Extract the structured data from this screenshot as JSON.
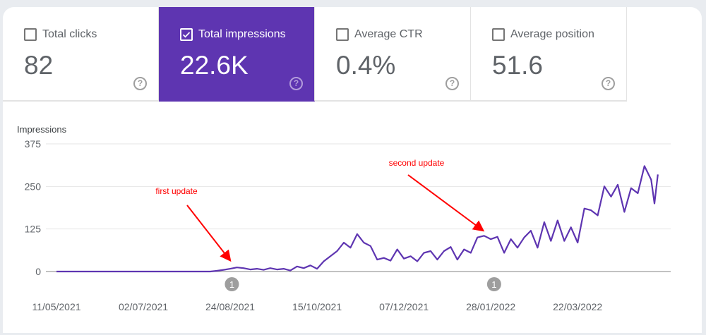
{
  "metrics": [
    {
      "label": "Total clicks",
      "value": "82",
      "checked": false
    },
    {
      "label": "Total impressions",
      "value": "22.6K",
      "checked": true
    },
    {
      "label": "Average CTR",
      "value": "0.4%",
      "checked": false
    },
    {
      "label": "Average position",
      "value": "51.6",
      "checked": false
    }
  ],
  "help_icon": "?",
  "colors": {
    "accent": "#5e35b1",
    "line": "#5e35b1",
    "annotation": "#ff0000"
  },
  "chart_data": {
    "type": "line",
    "ylabel": "Impressions",
    "ylim": [
      0,
      375
    ],
    "yticks": [
      "0",
      "125",
      "250",
      "375"
    ],
    "xticks": [
      "11/05/2021",
      "02/07/2021",
      "24/08/2021",
      "15/10/2021",
      "07/12/2021",
      "28/01/2022",
      "22/03/2022"
    ],
    "grid": true,
    "annotations": [
      {
        "text": "first update",
        "date": "2021-08-24"
      },
      {
        "text": "second update",
        "date": "2022-01-26"
      }
    ],
    "markers": [
      {
        "label": "1",
        "date": "2021-08-24"
      },
      {
        "label": "1",
        "date": "2022-01-28"
      }
    ],
    "series": [
      {
        "color": "#5e35b1",
        "points": [
          [
            "2021-05-11",
            0
          ],
          [
            "2021-05-15",
            0
          ],
          [
            "2021-05-19",
            0
          ],
          [
            "2021-05-23",
            0
          ],
          [
            "2021-05-27",
            0
          ],
          [
            "2021-05-31",
            0
          ],
          [
            "2021-06-04",
            0
          ],
          [
            "2021-06-08",
            0
          ],
          [
            "2021-06-12",
            0
          ],
          [
            "2021-06-16",
            0
          ],
          [
            "2021-06-20",
            0
          ],
          [
            "2021-06-24",
            0
          ],
          [
            "2021-06-28",
            0
          ],
          [
            "2021-07-02",
            0
          ],
          [
            "2021-07-06",
            0
          ],
          [
            "2021-07-10",
            0
          ],
          [
            "2021-07-14",
            0
          ],
          [
            "2021-07-18",
            0
          ],
          [
            "2021-07-22",
            0
          ],
          [
            "2021-07-26",
            0
          ],
          [
            "2021-07-30",
            0
          ],
          [
            "2021-08-03",
            0
          ],
          [
            "2021-08-07",
            0
          ],
          [
            "2021-08-11",
            0
          ],
          [
            "2021-08-15",
            2
          ],
          [
            "2021-08-19",
            5
          ],
          [
            "2021-08-23",
            8
          ],
          [
            "2021-08-27",
            12
          ],
          [
            "2021-08-31",
            10
          ],
          [
            "2021-09-04",
            6
          ],
          [
            "2021-09-08",
            8
          ],
          [
            "2021-09-12",
            5
          ],
          [
            "2021-09-16",
            10
          ],
          [
            "2021-09-20",
            6
          ],
          [
            "2021-09-24",
            8
          ],
          [
            "2021-09-28",
            3
          ],
          [
            "2021-10-02",
            15
          ],
          [
            "2021-10-06",
            10
          ],
          [
            "2021-10-10",
            18
          ],
          [
            "2021-10-14",
            8
          ],
          [
            "2021-10-18",
            30
          ],
          [
            "2021-10-22",
            45
          ],
          [
            "2021-10-26",
            60
          ],
          [
            "2021-10-30",
            85
          ],
          [
            "2021-11-03",
            70
          ],
          [
            "2021-11-07",
            110
          ],
          [
            "2021-11-11",
            85
          ],
          [
            "2021-11-15",
            75
          ],
          [
            "2021-11-19",
            35
          ],
          [
            "2021-11-23",
            40
          ],
          [
            "2021-11-27",
            32
          ],
          [
            "2021-12-01",
            65
          ],
          [
            "2021-12-05",
            38
          ],
          [
            "2021-12-09",
            45
          ],
          [
            "2021-12-13",
            30
          ],
          [
            "2021-12-17",
            55
          ],
          [
            "2021-12-21",
            60
          ],
          [
            "2021-12-25",
            35
          ],
          [
            "2021-12-29",
            60
          ],
          [
            "2022-01-02",
            72
          ],
          [
            "2022-01-06",
            35
          ],
          [
            "2022-01-10",
            65
          ],
          [
            "2022-01-14",
            55
          ],
          [
            "2022-01-18",
            100
          ],
          [
            "2022-01-22",
            105
          ],
          [
            "2022-01-26",
            95
          ],
          [
            "2022-01-30",
            102
          ],
          [
            "2022-02-03",
            55
          ],
          [
            "2022-02-07",
            95
          ],
          [
            "2022-02-11",
            70
          ],
          [
            "2022-02-15",
            100
          ],
          [
            "2022-02-19",
            120
          ],
          [
            "2022-02-23",
            70
          ],
          [
            "2022-02-27",
            145
          ],
          [
            "2022-03-03",
            90
          ],
          [
            "2022-03-07",
            150
          ],
          [
            "2022-03-11",
            90
          ],
          [
            "2022-03-15",
            130
          ],
          [
            "2022-03-19",
            85
          ],
          [
            "2022-03-23",
            185
          ],
          [
            "2022-03-27",
            180
          ],
          [
            "2022-03-31",
            165
          ],
          [
            "2022-04-04",
            250
          ],
          [
            "2022-04-08",
            220
          ],
          [
            "2022-04-12",
            255
          ],
          [
            "2022-04-16",
            175
          ],
          [
            "2022-04-20",
            245
          ],
          [
            "2022-04-24",
            230
          ],
          [
            "2022-04-28",
            310
          ],
          [
            "2022-05-02",
            270
          ],
          [
            "2022-05-04",
            200
          ],
          [
            "2022-05-06",
            285
          ]
        ]
      }
    ]
  }
}
